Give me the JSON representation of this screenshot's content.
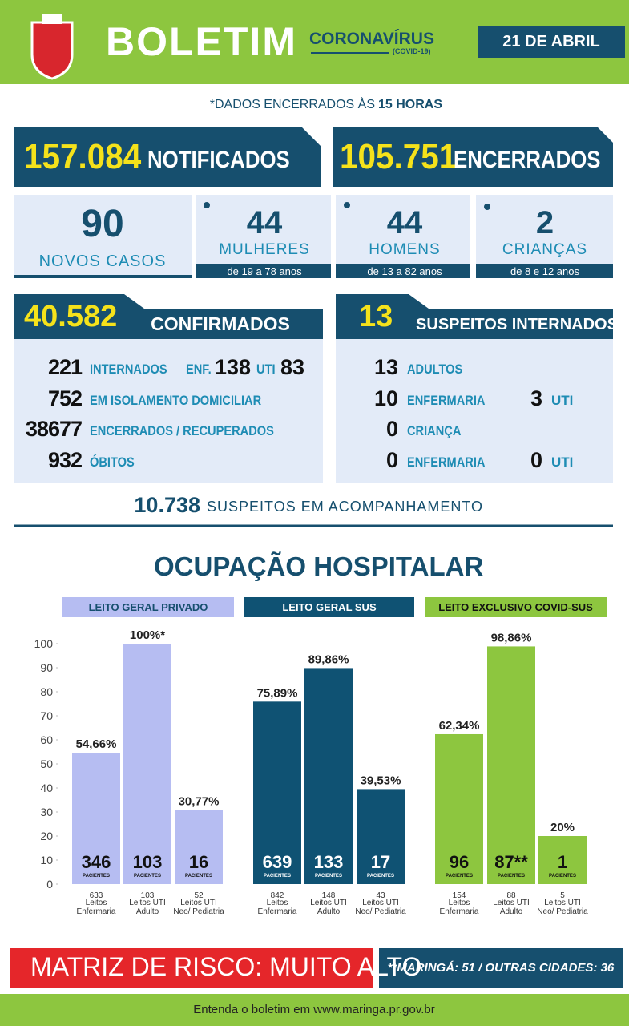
{
  "header": {
    "title": "BOLETIM",
    "subtitle": "CORONAVÍRUS",
    "subtitle_note": "(COVID-19)",
    "date": "21 DE ABRIL"
  },
  "note": {
    "prefix": "*DADOS ENCERRADOS ÀS",
    "hours": "15 HORAS"
  },
  "totals": [
    {
      "value": "157.084",
      "label": "NOTIFICADOS"
    },
    {
      "value": "105.751",
      "label": "ENCERRADOS"
    }
  ],
  "new_cases": {
    "value": "90",
    "label": "NOVOS CASOS"
  },
  "groups": [
    {
      "value": "44",
      "label": "MULHERES",
      "range": "de 19 a 78 anos"
    },
    {
      "value": "44",
      "label": "HOMENS",
      "range": "de 13 a 82 anos"
    },
    {
      "value": "2",
      "label": "CRIANÇAS",
      "range": "de 8 e 12 anos"
    }
  ],
  "confirmed": {
    "value": "40.582",
    "label": "CONFIRMADOS",
    "rows": [
      {
        "value": "221",
        "label": "INTERNADOS",
        "extra": [
          {
            "label": "ENF.",
            "value": "138"
          },
          {
            "label": "UTI",
            "value": "83"
          }
        ]
      },
      {
        "value": "752",
        "label": "EM ISOLAMENTO DOMICILIAR"
      },
      {
        "value": "38677",
        "label": "ENCERRADOS / RECUPERADOS"
      },
      {
        "value": "932",
        "label": "ÓBITOS"
      }
    ]
  },
  "suspects": {
    "value": "13",
    "label": "SUSPEITOS INTERNADOS",
    "rows": [
      {
        "value": "13",
        "label": "ADULTOS"
      },
      {
        "value": "10",
        "label": "ENFERMARIA",
        "extra": [
          {
            "value": "3",
            "label": "UTI"
          }
        ]
      },
      {
        "value": "0",
        "label": "CRIANÇA"
      },
      {
        "value": "0",
        "label": "ENFERMARIA",
        "extra": [
          {
            "value": "0",
            "label": "UTI"
          }
        ]
      }
    ]
  },
  "monitoring": {
    "value": "10.738",
    "label": "SUSPEITOS EM ACOMPANHAMENTO"
  },
  "section_title": "OCUPAÇÃO HOSPITALAR",
  "chart_data": [
    {
      "type": "bar",
      "title": "LEITO GERAL PRIVADO",
      "color": "#b6bdf2",
      "categories": [
        "Leitos Enfermaria",
        "Leitos UTI Adulto",
        "Leitos UTI Neo/ Pediatria"
      ],
      "beds": [
        "633",
        "103",
        "52"
      ],
      "patients": [
        "346",
        "103",
        "16"
      ],
      "patients_label": "PACIENTES",
      "values": [
        54.66,
        100,
        30.77
      ],
      "value_labels": [
        "54,66%",
        "100%*",
        "30,77%"
      ],
      "ylim": [
        0,
        100
      ],
      "yticks": [
        0,
        10,
        20,
        30,
        40,
        50,
        60,
        70,
        80,
        90,
        100
      ]
    },
    {
      "type": "bar",
      "title": "LEITO GERAL SUS",
      "color": "#0f5273",
      "categories": [
        "Leitos Enfermaria",
        "Leitos UTI Adulto",
        "Leitos UTI Neo/ Pediatria"
      ],
      "beds": [
        "842",
        "148",
        "43"
      ],
      "patients": [
        "639",
        "133",
        "17"
      ],
      "patients_label": "PACIENTES",
      "values": [
        75.89,
        89.86,
        39.53
      ],
      "value_labels": [
        "75,89%",
        "89,86%",
        "39,53%"
      ],
      "ylim": [
        0,
        100
      ]
    },
    {
      "type": "bar",
      "title": "LEITO EXCLUSIVO COVID-SUS",
      "color": "#8dc63f",
      "categories": [
        "Leitos Enfermaria",
        "Leitos UTI Adulto",
        "Leitos UTI Neo/ Pediatria"
      ],
      "beds": [
        "154",
        "88",
        "5"
      ],
      "patients": [
        "96",
        "87**",
        "1"
      ],
      "patients_label": "PACIENTES",
      "values": [
        62.34,
        98.86,
        20
      ],
      "value_labels": [
        "62,34%",
        "98,86%",
        "20%"
      ],
      "ylim": [
        0,
        100
      ]
    }
  ],
  "risk": "MATRIZ DE RISCO: MUITO ALTO",
  "risk_note": "**MARINGÁ: 51 / OUTRAS CIDADES: 36",
  "footer": "Entenda o boletim em www.maringa.pr.gov.br"
}
